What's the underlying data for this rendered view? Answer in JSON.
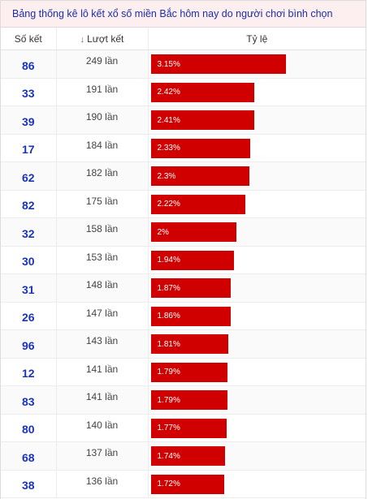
{
  "title": "Bảng thống kê lô kết xổ số miền Bắc hôm nay do người chơi bình chọn",
  "headers": {
    "number": "Số kết",
    "count": "Lượt kết",
    "ratio": "Tỷ lệ"
  },
  "colors": {
    "bar": "#d10000",
    "number_text": "#1a34b8",
    "title_bg": "#fdeef0"
  },
  "rows": [
    {
      "number": "86",
      "count": "249 lần",
      "ratio": "3.15%",
      "value": 3.15
    },
    {
      "number": "33",
      "count": "191 lần",
      "ratio": "2.42%",
      "value": 2.42
    },
    {
      "number": "39",
      "count": "190 lần",
      "ratio": "2.41%",
      "value": 2.41
    },
    {
      "number": "17",
      "count": "184 lần",
      "ratio": "2.33%",
      "value": 2.33
    },
    {
      "number": "62",
      "count": "182 lần",
      "ratio": "2.3%",
      "value": 2.3
    },
    {
      "number": "82",
      "count": "175 lần",
      "ratio": "2.22%",
      "value": 2.22
    },
    {
      "number": "32",
      "count": "158 lần",
      "ratio": "2%",
      "value": 2.0
    },
    {
      "number": "30",
      "count": "153 lần",
      "ratio": "1.94%",
      "value": 1.94
    },
    {
      "number": "31",
      "count": "148 lần",
      "ratio": "1.87%",
      "value": 1.87
    },
    {
      "number": "26",
      "count": "147 lần",
      "ratio": "1.86%",
      "value": 1.86
    },
    {
      "number": "96",
      "count": "143 lần",
      "ratio": "1.81%",
      "value": 1.81
    },
    {
      "number": "12",
      "count": "141 lần",
      "ratio": "1.79%",
      "value": 1.79
    },
    {
      "number": "83",
      "count": "141 lần",
      "ratio": "1.79%",
      "value": 1.79
    },
    {
      "number": "80",
      "count": "140 lần",
      "ratio": "1.77%",
      "value": 1.77
    },
    {
      "number": "68",
      "count": "137 lần",
      "ratio": "1.74%",
      "value": 1.74
    },
    {
      "number": "38",
      "count": "136 lần",
      "ratio": "1.72%",
      "value": 1.72
    }
  ]
}
